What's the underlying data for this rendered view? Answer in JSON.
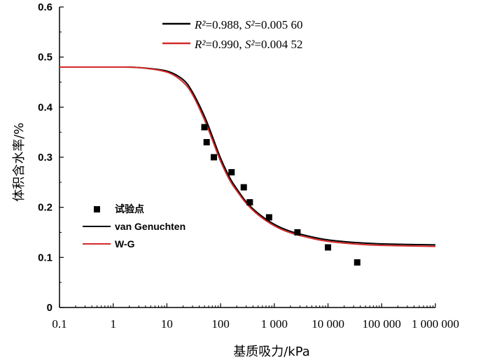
{
  "chart_data": {
    "type": "line",
    "xscale": "log",
    "xlim": [
      0.1,
      1000000
    ],
    "ylim": [
      0,
      0.6
    ],
    "xlabel": "基质吸力/kPa",
    "ylabel": "体积含水率/%",
    "xtick_labels": [
      "0.1",
      "1",
      "10",
      "100",
      "1 000",
      "10 000",
      "100 000",
      "1 000 000"
    ],
    "ytick_labels": [
      "0",
      "0.1",
      "0.2",
      "0.3",
      "0.4",
      "0.5",
      "0.6"
    ],
    "xticks": [
      0.1,
      1,
      10,
      100,
      1000,
      10000,
      100000,
      1000000
    ],
    "yticks": [
      0,
      0.1,
      0.2,
      0.3,
      0.4,
      0.5,
      0.6
    ],
    "grid": false,
    "legend_position": "bottom-left",
    "annotations": [
      {
        "r2_label": "R²",
        "r2_value": "=0.988, ",
        "s2_label": "S²",
        "s2_value": "=0.005 60",
        "color": "#000000"
      },
      {
        "r2_label": "R²",
        "r2_value": "=0.990, ",
        "s2_label": "S²",
        "s2_value": "=0.004 52",
        "color": "#d42a2a"
      }
    ],
    "series": [
      {
        "name": "试验点",
        "kind": "scatter",
        "marker": "square",
        "color": "#000000",
        "x": [
          50,
          55,
          75,
          160,
          270,
          350,
          800,
          2700,
          10000,
          35000
        ],
        "y": [
          0.36,
          0.33,
          0.3,
          0.27,
          0.24,
          0.21,
          0.18,
          0.15,
          0.12,
          0.09
        ]
      },
      {
        "name": "van Genuchten",
        "kind": "line",
        "color": "#000000",
        "x": [
          0.1,
          1,
          3,
          10,
          20,
          30,
          50,
          70,
          100,
          150,
          200,
          300,
          500,
          1000,
          2000,
          5000,
          10000,
          30000,
          100000,
          1000000
        ],
        "y": [
          0.48,
          0.48,
          0.479,
          0.472,
          0.455,
          0.43,
          0.382,
          0.342,
          0.298,
          0.258,
          0.237,
          0.211,
          0.188,
          0.166,
          0.152,
          0.141,
          0.135,
          0.13,
          0.127,
          0.125
        ]
      },
      {
        "name": "W-G",
        "kind": "line",
        "color": "#d42a2a",
        "x": [
          0.1,
          1,
          3,
          10,
          20,
          30,
          50,
          70,
          100,
          150,
          200,
          300,
          500,
          1000,
          2000,
          5000,
          10000,
          30000,
          100000,
          1000000
        ],
        "y": [
          0.48,
          0.48,
          0.479,
          0.47,
          0.45,
          0.425,
          0.375,
          0.335,
          0.292,
          0.253,
          0.233,
          0.208,
          0.185,
          0.163,
          0.149,
          0.138,
          0.132,
          0.127,
          0.124,
          0.122
        ]
      }
    ]
  }
}
